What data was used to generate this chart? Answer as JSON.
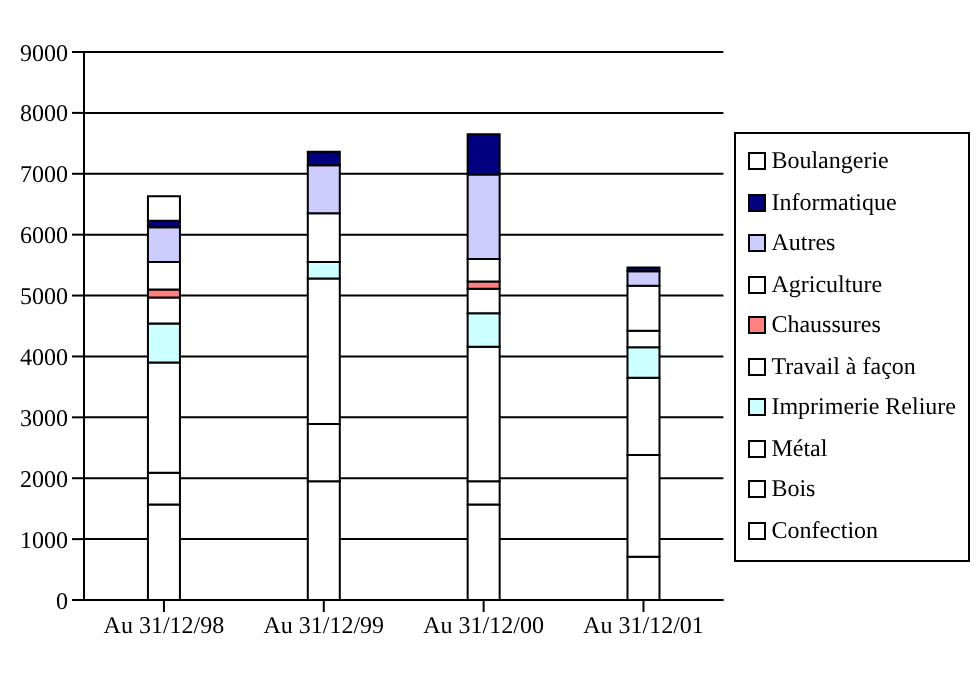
{
  "chart_data": {
    "type": "bar",
    "stacked": true,
    "categories": [
      "Au 31/12/98",
      "Au 31/12/99",
      "Au 31/12/00",
      "Au 31/12/01"
    ],
    "series": [
      {
        "name": "Confection",
        "color": "#ffffff",
        "values": [
          1570,
          1950,
          1570,
          710
        ]
      },
      {
        "name": "Bois",
        "color": "#ffffff",
        "values": [
          520,
          940,
          380,
          1670
        ]
      },
      {
        "name": "Métal",
        "color": "#ffffff",
        "values": [
          1810,
          2390,
          2210,
          1270
        ]
      },
      {
        "name": "Imprimerie Reliure",
        "color": "#ccffff",
        "values": [
          640,
          270,
          550,
          500
        ]
      },
      {
        "name": "Travail à façon",
        "color": "#ffffff",
        "values": [
          430,
          null,
          400,
          270
        ]
      },
      {
        "name": "Chaussures",
        "color": "#ff8080",
        "values": [
          130,
          null,
          120,
          0
        ]
      },
      {
        "name": "Agriculture",
        "color": "#ffffff",
        "values": [
          450,
          800,
          370,
          740
        ]
      },
      {
        "name": "Autres",
        "color": "#ccccff",
        "values": [
          570,
          790,
          1390,
          240
        ]
      },
      {
        "name": "Informatique",
        "color": "#000080",
        "values": [
          110,
          220,
          660,
          60
        ]
      },
      {
        "name": "Boulangerie",
        "color": "#ffffff",
        "values": [
          400,
          0,
          0,
          0
        ]
      }
    ],
    "ylim": [
      0,
      9000
    ],
    "yticks": [
      0,
      1000,
      2000,
      3000,
      4000,
      5000,
      6000,
      7000,
      8000,
      9000
    ],
    "grid": "y",
    "legend": "right"
  }
}
